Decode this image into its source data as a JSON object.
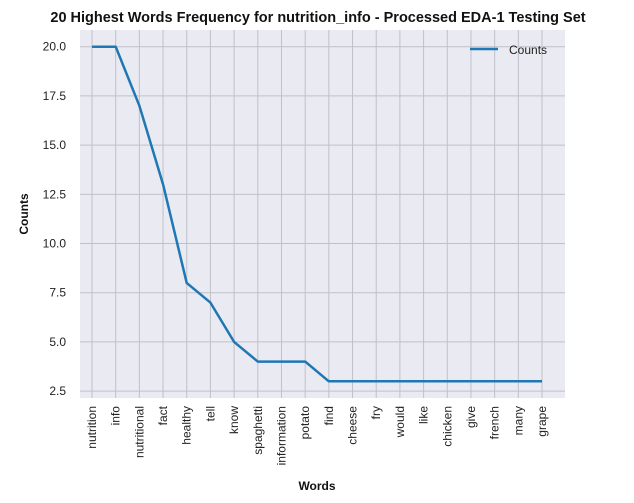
{
  "chart_data": {
    "type": "line",
    "title": "20 Highest Words Frequency for nutrition_info - Processed EDA-1 Testing Set",
    "xlabel": "Words",
    "ylabel": "Counts",
    "categories": [
      "nutrition",
      "info",
      "nutritional",
      "fact",
      "healthy",
      "tell",
      "know",
      "spaghetti",
      "information",
      "potato",
      "find",
      "cheese",
      "fry",
      "would",
      "like",
      "chicken",
      "give",
      "french",
      "many",
      "grape"
    ],
    "series": [
      {
        "name": "Counts",
        "values": [
          20,
          20,
          17,
          13,
          8,
          7,
          5,
          4,
          4,
          4,
          3,
          3,
          3,
          3,
          3,
          3,
          3,
          3,
          3,
          3
        ]
      }
    ],
    "yticks": [
      "2.5",
      "5.0",
      "7.5",
      "10.0",
      "12.5",
      "15.0",
      "17.5",
      "20.0"
    ],
    "ylim": [
      2.15,
      20.85
    ],
    "grid": true,
    "legend": "top-right",
    "colors": {
      "line": "#1f77b4",
      "plot_background": "#eaeaf2",
      "grid": "#c0c0c8"
    }
  }
}
